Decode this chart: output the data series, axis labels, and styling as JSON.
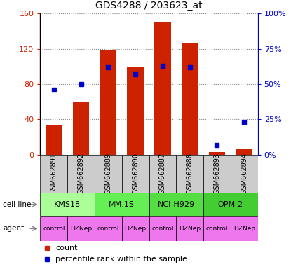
{
  "title": "GDS4288 / 203623_at",
  "samples": [
    "GSM662891",
    "GSM662892",
    "GSM662889",
    "GSM662890",
    "GSM662887",
    "GSM662888",
    "GSM662893",
    "GSM662894"
  ],
  "count_values": [
    33,
    60,
    118,
    100,
    150,
    127,
    3,
    7
  ],
  "percentile_values": [
    46,
    50,
    62,
    57,
    63,
    62,
    7,
    23
  ],
  "ylim_left": [
    0,
    160
  ],
  "ylim_right": [
    0,
    100
  ],
  "yticks_left": [
    0,
    40,
    80,
    120,
    160
  ],
  "yticks_right": [
    0,
    25,
    50,
    75,
    100
  ],
  "ytick_labels_right": [
    "0%",
    "25%",
    "50%",
    "75%",
    "100%"
  ],
  "cell_line_groups": [
    {
      "label": "KMS18",
      "start": 0,
      "end": 2,
      "color": "#aaff99"
    },
    {
      "label": "MM.1S",
      "start": 2,
      "end": 4,
      "color": "#66ee55"
    },
    {
      "label": "NCI-H929",
      "start": 4,
      "end": 6,
      "color": "#55dd44"
    },
    {
      "label": "OPM-2",
      "start": 6,
      "end": 8,
      "color": "#44cc33"
    }
  ],
  "agents": [
    "control",
    "DZNep",
    "control",
    "DZNep",
    "control",
    "DZNep",
    "control",
    "DZNep"
  ],
  "agent_color": "#ee77ee",
  "gsm_bg_color": "#cccccc",
  "bar_color": "#cc2200",
  "dot_color": "#0000cc",
  "left_axis_color": "#cc2200",
  "right_axis_color": "#0000cc",
  "label_color_cell": "black",
  "label_text_cell": "cell line",
  "label_text_agent": "agent"
}
